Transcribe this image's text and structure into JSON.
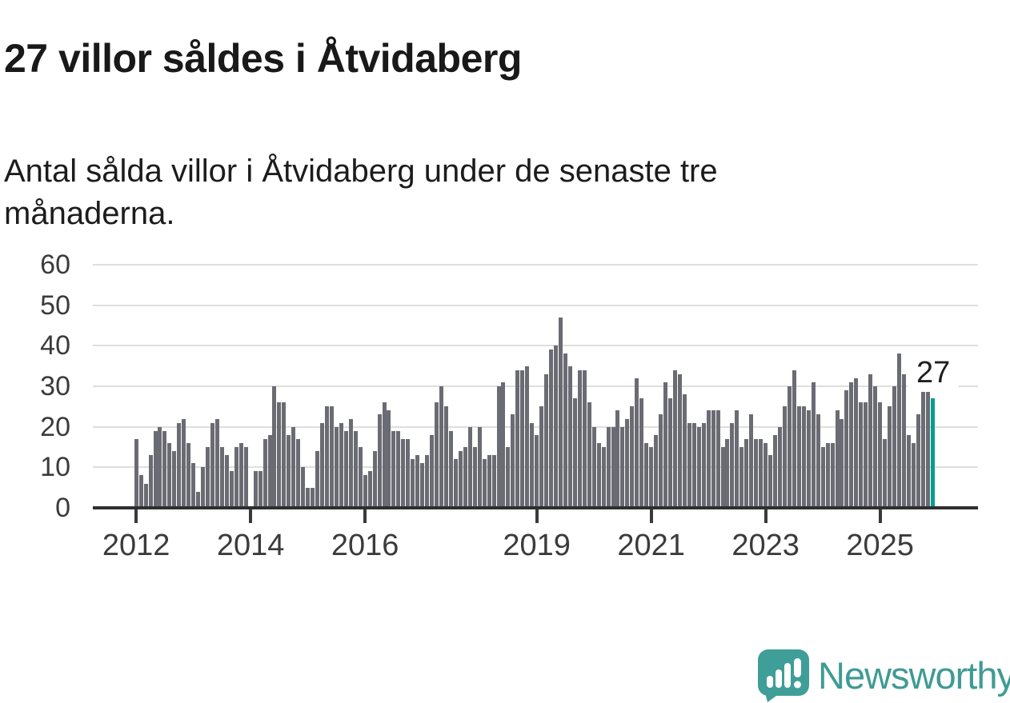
{
  "header": {
    "title": "27 villor såldes i Åtvidaberg",
    "subtitle": "Antal sålda villor i Åtvidaberg under de senaste tre månaderna."
  },
  "chart_data": {
    "type": "bar",
    "title": "27 villor såldes i Åtvidaberg",
    "subtitle": "Antal sålda villor i Åtvidaberg under de senaste tre månaderna.",
    "x_description": "months from January 2012 through the latest month of 2025",
    "values": [
      17,
      8,
      6,
      13,
      19,
      20,
      19,
      16,
      14,
      21,
      22,
      16,
      11,
      4,
      10,
      15,
      21,
      22,
      15,
      13,
      9,
      15,
      16,
      15,
      0,
      9,
      9,
      17,
      18,
      30,
      26,
      26,
      18,
      20,
      17,
      10,
      5,
      5,
      14,
      21,
      25,
      25,
      20,
      21,
      19,
      22,
      19,
      15,
      8,
      9,
      14,
      23,
      26,
      24,
      19,
      19,
      17,
      17,
      12,
      13,
      11,
      13,
      18,
      26,
      30,
      25,
      19,
      12,
      14,
      15,
      20,
      15,
      20,
      12,
      13,
      13,
      30,
      31,
      15,
      23,
      34,
      34,
      35,
      21,
      18,
      25,
      33,
      39,
      40,
      47,
      38,
      35,
      27,
      34,
      34,
      26,
      20,
      16,
      15,
      20,
      20,
      24,
      20,
      22,
      25,
      32,
      27,
      16,
      15,
      18,
      23,
      31,
      27,
      34,
      33,
      28,
      21,
      21,
      20,
      21,
      24,
      24,
      24,
      15,
      17,
      21,
      24,
      15,
      17,
      23,
      17,
      17,
      16,
      13,
      18,
      20,
      25,
      30,
      34,
      25,
      25,
      24,
      31,
      23,
      15,
      16,
      16,
      24,
      22,
      29,
      31,
      32,
      26,
      26,
      33,
      30,
      26,
      17,
      25,
      30,
      38,
      33,
      18,
      16,
      23,
      30,
      30,
      27
    ],
    "highlight_index": 167,
    "highlight_value": 27,
    "highlight_label": "27",
    "yticks": [
      0,
      10,
      20,
      30,
      40,
      50,
      60
    ],
    "ylim": [
      0,
      60
    ],
    "xticks": [
      {
        "label": "2012",
        "month_index": 0
      },
      {
        "label": "2014",
        "month_index": 24
      },
      {
        "label": "2016",
        "month_index": 48
      },
      {
        "label": "2019",
        "month_index": 84
      },
      {
        "label": "2021",
        "month_index": 108
      },
      {
        "label": "2023",
        "month_index": 132
      },
      {
        "label": "2025",
        "month_index": 156
      }
    ],
    "grid": "horizontal",
    "legend": "none",
    "bar_color": "#6b6b73",
    "highlight_color": "#089c94",
    "gridline_color": "#dedede",
    "axis_color": "#2f2f2f",
    "tick_label_color": "#3b3b3b"
  },
  "footer": {
    "brand": "Newsworthy",
    "brand_color": "#3f9b94",
    "logo_icon": "bar-chart-speech-bubble"
  }
}
